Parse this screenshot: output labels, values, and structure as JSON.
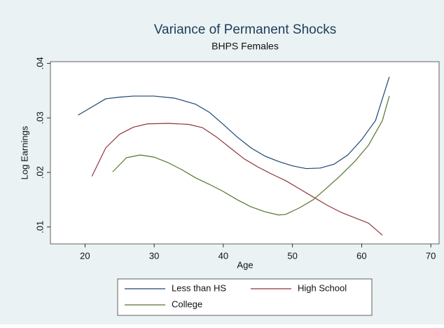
{
  "chart_data": {
    "type": "line",
    "title": "Variance of Permanent Shocks",
    "subtitle": "BHPS Females",
    "x_label": "Age",
    "y_label": "Log Earnings",
    "xlim": [
      15,
      71.2
    ],
    "ylim": [
      0.0069,
      0.0403
    ],
    "xticks": [
      20,
      30,
      40,
      50,
      60,
      70
    ],
    "yticks": [
      {
        "value": 0.01,
        "label": ".01"
      },
      {
        "value": 0.02,
        "label": ".02"
      },
      {
        "value": 0.03,
        "label": ".03"
      },
      {
        "value": 0.04,
        "label": ".04"
      }
    ],
    "series": [
      {
        "name": "Less than HS",
        "color": "#1a476f",
        "x": [
          19,
          21,
          23,
          25,
          27,
          30,
          33,
          36,
          38,
          40,
          42,
          44,
          46,
          48,
          50,
          52,
          54,
          56,
          58,
          60,
          62,
          64
        ],
        "values": [
          0.0305,
          0.032,
          0.0335,
          0.0338,
          0.034,
          0.034,
          0.0336,
          0.0325,
          0.031,
          0.0288,
          0.0265,
          0.0245,
          0.023,
          0.022,
          0.0212,
          0.0207,
          0.0208,
          0.0215,
          0.0232,
          0.026,
          0.0295,
          0.0375
        ]
      },
      {
        "name": "High School",
        "color": "#90353b",
        "x": [
          21,
          23,
          25,
          27,
          29,
          32,
          35,
          37,
          39,
          41,
          43,
          45,
          47,
          49,
          51,
          53,
          55,
          57,
          59,
          61,
          63
        ],
        "values": [
          0.0193,
          0.0245,
          0.027,
          0.0283,
          0.0289,
          0.029,
          0.0288,
          0.0282,
          0.0265,
          0.0245,
          0.0225,
          0.021,
          0.0197,
          0.0185,
          0.017,
          0.0155,
          0.014,
          0.0127,
          0.0117,
          0.0107,
          0.0085
        ]
      },
      {
        "name": "College",
        "color": "#55752f",
        "x": [
          24,
          26,
          28,
          30,
          32,
          34,
          36,
          38,
          40,
          42,
          44,
          46,
          48,
          49,
          51,
          53,
          55,
          57,
          59,
          61,
          63,
          64
        ],
        "values": [
          0.0201,
          0.0227,
          0.0232,
          0.0228,
          0.0218,
          0.0205,
          0.019,
          0.0178,
          0.0165,
          0.015,
          0.0137,
          0.0128,
          0.0122,
          0.0123,
          0.0135,
          0.015,
          0.0172,
          0.0195,
          0.022,
          0.025,
          0.0295,
          0.034
        ]
      }
    ]
  }
}
